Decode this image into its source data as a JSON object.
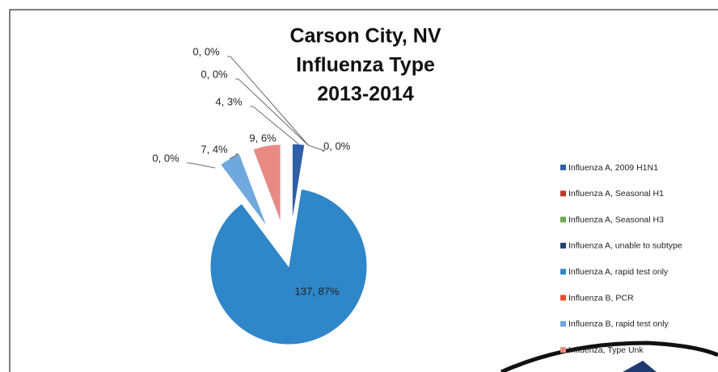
{
  "chart_data": {
    "type": "pie",
    "title": [
      "Carson City, NV",
      "Influenza Type",
      "2013-2014"
    ],
    "categories": [
      "Influenza A, 2009 H1N1",
      "Influenza A, Seasonal H1",
      "Influenza A, Seasonal H3",
      "Influenza A, unable to subtype",
      "Influenza A, rapid test only",
      "Influenza B, PCR",
      "Influenza B, rapid test only",
      "Influenza, Type Unk"
    ],
    "values": [
      4,
      0,
      0,
      0,
      137,
      0,
      7,
      9
    ],
    "value_labels": [
      "4, 3%",
      "0, 0%",
      "0, 0%",
      "0, 0%",
      "137, 87%",
      "0, 0%",
      "7, 4%",
      "9, 6%"
    ],
    "colors": [
      "#2f5fa6",
      "#c0392b",
      "#6aa84f",
      "#243f73",
      "#2f86c8",
      "#e8502a",
      "#6fa8dc",
      "#e88a84"
    ],
    "legend": "right"
  }
}
